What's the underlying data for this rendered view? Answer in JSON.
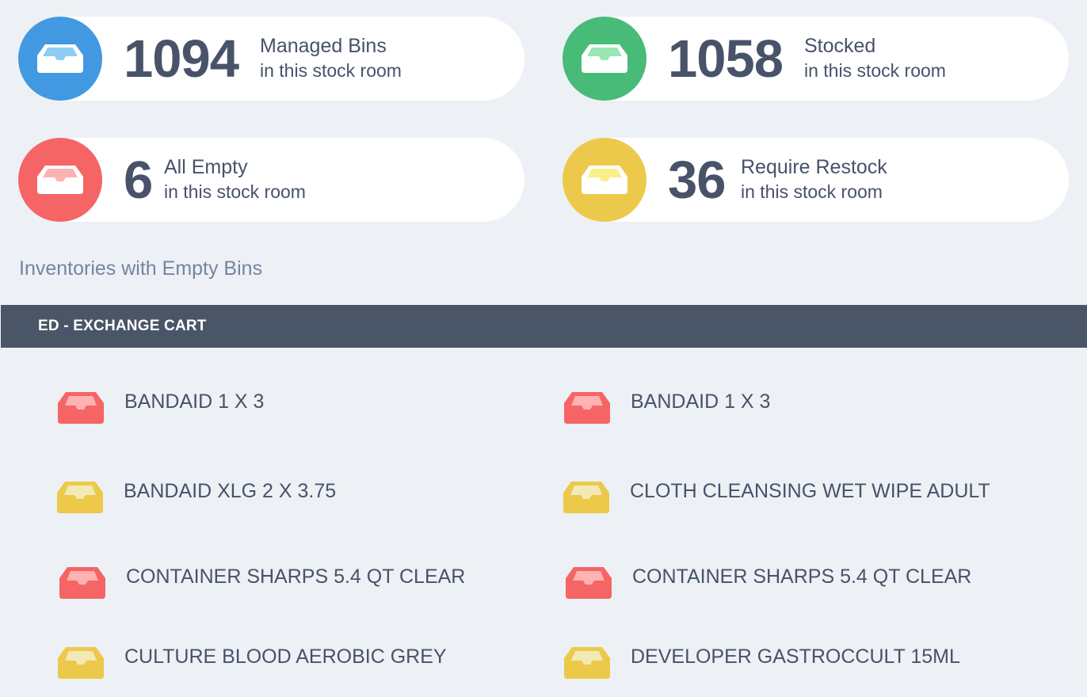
{
  "colors": {
    "blue": "#4299e1",
    "green": "#48bb78",
    "red": "#f56565",
    "yellow": "#ecc94b",
    "header": "#4a5568"
  },
  "stats": [
    {
      "icon": "inbox-tray-icon",
      "color": "blue",
      "value": "1094",
      "label": "Managed Bins",
      "sub": "in this stock room"
    },
    {
      "icon": "inbox-tray-icon",
      "color": "green",
      "value": "1058",
      "label": "Stocked",
      "sub": "in this stock room"
    },
    {
      "icon": "inbox-tray-icon",
      "color": "red",
      "value": "6",
      "label": "All Empty",
      "sub": "in this stock room"
    },
    {
      "icon": "inbox-tray-icon",
      "color": "yellow",
      "value": "36",
      "label": "Require Restock",
      "sub": "in this stock room"
    }
  ],
  "section_title": "Inventories with Empty Bins",
  "group": {
    "name": "ED - EXCHANGE CART",
    "items": [
      {
        "status": "red",
        "label": "BANDAID 1 X 3"
      },
      {
        "status": "red",
        "label": "BANDAID 1 X 3"
      },
      {
        "status": "yellow",
        "label": "BANDAID XLG 2 X 3.75"
      },
      {
        "status": "yellow",
        "label": "CLOTH CLEANSING WET WIPE ADULT"
      },
      {
        "status": "red",
        "label": "CONTAINER SHARPS 5.4 QT CLEAR"
      },
      {
        "status": "red",
        "label": "CONTAINER SHARPS 5.4 QT CLEAR"
      },
      {
        "status": "yellow",
        "label": "CULTURE BLOOD AEROBIC GREY"
      },
      {
        "status": "yellow",
        "label": "DEVELOPER GASTROCCULT 15ML"
      }
    ]
  }
}
